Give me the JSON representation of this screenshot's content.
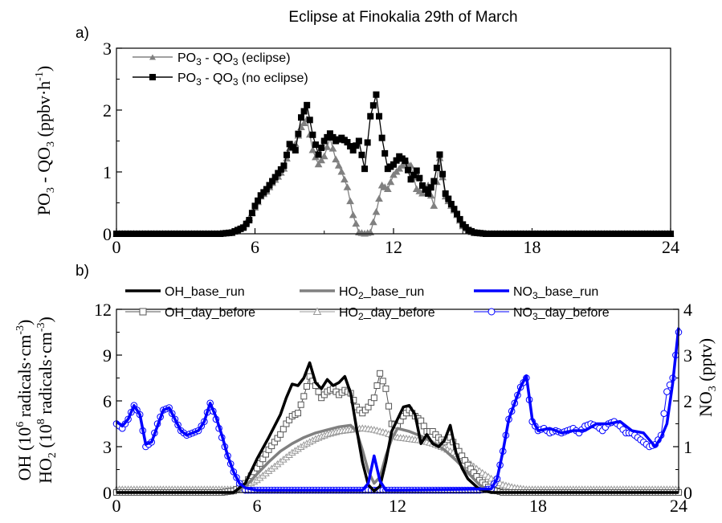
{
  "figure": {
    "title": "Eclipse at Finokalia 29th of March"
  },
  "chart_data": [
    {
      "panel_label": "a)",
      "type": "line",
      "ylabel_main": "PO",
      "ylabel_sub1": "3",
      "ylabel_mid": " - QO",
      "ylabel_sub2": "3",
      "ylabel_unit_open": " (ppbv",
      "ylabel_dot": "·",
      "ylabel_unit_h": "h",
      "ylabel_sup": "-1",
      "ylabel_close": ")",
      "xlim": [
        0,
        24
      ],
      "ylim": [
        0,
        3
      ],
      "xticks": [
        "0",
        "6",
        "12",
        "18",
        "24"
      ],
      "yticks": [
        "0",
        "1",
        "2",
        "3"
      ],
      "legend_position": "top-left",
      "series": [
        {
          "name": "PO3 - QO3 (eclipse)",
          "legend": {
            "a": "PO",
            "s1": "3",
            "b": " - QO",
            "s2": "3",
            "c": " (eclipse)"
          },
          "color": "#808080",
          "marker": "triangle",
          "x": [
            4.5,
            5.0,
            5.5,
            5.75,
            6.0,
            6.25,
            6.5,
            6.75,
            7.0,
            7.25,
            7.5,
            7.75,
            8.0,
            8.25,
            8.5,
            8.75,
            9.0,
            9.25,
            9.5,
            9.75,
            10.0,
            10.25,
            10.5,
            10.75,
            11.0,
            11.25,
            11.5,
            11.75,
            12.0,
            12.25,
            12.5,
            12.75,
            13.0,
            13.25,
            13.5,
            13.75,
            14.0,
            14.25,
            14.5,
            14.75,
            15.0,
            15.25,
            15.5,
            16.0,
            17.0,
            24.0
          ],
          "y": [
            0,
            0.01,
            0.12,
            0.25,
            0.42,
            0.6,
            0.68,
            0.82,
            0.92,
            1.05,
            1.38,
            1.45,
            1.72,
            1.85,
            1.35,
            1.12,
            1.25,
            1.55,
            1.2,
            1.0,
            0.75,
            0.3,
            0.02,
            0,
            0.02,
            0.35,
            0.78,
            0.72,
            0.95,
            1.05,
            1.15,
            1.1,
            0.72,
            0.65,
            0.78,
            0.45,
            1.22,
            0.6,
            0.45,
            0.3,
            0.12,
            0.04,
            0.01,
            0,
            0,
            0
          ]
        },
        {
          "name": "PO3 - QO3 (no eclipse)",
          "legend": {
            "a": "PO",
            "s1": "3",
            "b": " - QO",
            "s2": "3",
            "c": " (no eclipse)"
          },
          "color": "#000000",
          "marker": "square",
          "x": [
            4.5,
            5.0,
            5.5,
            5.75,
            6.0,
            6.25,
            6.5,
            6.75,
            7.0,
            7.25,
            7.5,
            7.75,
            8.0,
            8.25,
            8.5,
            8.75,
            9.0,
            9.25,
            9.5,
            9.75,
            10.0,
            10.25,
            10.5,
            10.75,
            11.0,
            11.25,
            11.5,
            11.75,
            12.0,
            12.25,
            12.5,
            12.75,
            13.0,
            13.25,
            13.5,
            13.75,
            14.0,
            14.25,
            14.5,
            14.75,
            15.0,
            15.25,
            15.5,
            16.0,
            17.0,
            24.0
          ],
          "y": [
            0,
            0.02,
            0.1,
            0.22,
            0.45,
            0.62,
            0.72,
            0.85,
            0.98,
            1.1,
            1.45,
            1.35,
            1.88,
            2.08,
            1.6,
            1.28,
            1.5,
            1.62,
            1.5,
            1.55,
            1.48,
            1.35,
            1.5,
            1.05,
            1.9,
            2.25,
            1.55,
            1.05,
            1.12,
            1.25,
            1.18,
            0.88,
            1.02,
            0.78,
            0.65,
            0.85,
            1.28,
            0.65,
            0.48,
            0.32,
            0.15,
            0.06,
            0.02,
            0,
            0,
            0
          ]
        }
      ]
    },
    {
      "panel_label": "b)",
      "type": "line",
      "ylabel_left1_a": "OH  (10",
      "ylabel_left1_sup": "6",
      "ylabel_left1_b": " radicals",
      "ylabel_left1_dot": "·",
      "ylabel_left1_c": "cm",
      "ylabel_left1_sup2": "-3",
      "ylabel_left1_d": ")",
      "ylabel_left2_a": "HO",
      "ylabel_left2_sub": "2",
      "ylabel_left2_b": " (10",
      "ylabel_left2_sup": "8",
      "ylabel_left2_c": " radicals",
      "ylabel_left2_dot": "·",
      "ylabel_left2_d": "cm",
      "ylabel_left2_sup2": "-3",
      "ylabel_left2_e": ")",
      "ylabel_right_a": "NO",
      "ylabel_right_sub": "3",
      "ylabel_right_b": " (pptv)",
      "xlim": [
        0,
        24
      ],
      "ylim_left": [
        0,
        12
      ],
      "ylim_right": [
        0,
        4
      ],
      "xticks": [
        "0",
        "6",
        "12",
        "18",
        "24"
      ],
      "yticks_left": [
        "0",
        "3",
        "6",
        "9",
        "12"
      ],
      "yticks_right": [
        "0",
        "1",
        "2",
        "3",
        "4"
      ],
      "legend_position": "top",
      "series": [
        {
          "name": "OH_base_run",
          "legend": {
            "a": "OH_base_run"
          },
          "axis": "left",
          "color": "#000000",
          "marker": "none",
          "width": 3.5,
          "x": [
            0,
            5.0,
            5.5,
            6.0,
            6.5,
            7.0,
            7.25,
            7.5,
            7.75,
            8.0,
            8.25,
            8.5,
            8.75,
            9.0,
            9.25,
            9.5,
            9.75,
            10.0,
            10.25,
            10.5,
            10.75,
            11.0,
            11.25,
            11.5,
            11.75,
            12.0,
            12.25,
            12.5,
            12.75,
            13.0,
            13.25,
            13.5,
            13.75,
            14.0,
            14.25,
            14.5,
            14.75,
            15.0,
            15.5,
            16.0,
            24
          ],
          "y": [
            0,
            0,
            0.6,
            2.2,
            3.6,
            5.1,
            6.2,
            7.1,
            7.0,
            7.5,
            8.5,
            7.2,
            6.8,
            7.4,
            7.0,
            7.2,
            7.6,
            6.5,
            4.2,
            2.0,
            0.5,
            0.1,
            0.4,
            2.0,
            4.0,
            4.8,
            5.6,
            5.7,
            5.1,
            3.2,
            3.8,
            3.2,
            3.0,
            3.4,
            4.4,
            2.6,
            1.6,
            0.9,
            0.2,
            0,
            0
          ]
        },
        {
          "name": "HO2_base_run",
          "legend": {
            "a": "HO",
            "s1": "2",
            "b": "_base_run"
          },
          "axis": "left",
          "color": "#808080",
          "marker": "none",
          "width": 3.5,
          "x": [
            0,
            5.0,
            5.5,
            6.0,
            6.5,
            7.0,
            7.5,
            8.0,
            8.5,
            9.0,
            9.5,
            10.0,
            10.25,
            10.5,
            10.75,
            11.0,
            11.25,
            11.5,
            11.75,
            12.0,
            12.5,
            13.0,
            13.5,
            14.0,
            14.5,
            15.0,
            15.5,
            16.0,
            24
          ],
          "y": [
            0,
            0,
            0.4,
            1.2,
            2.0,
            2.7,
            3.2,
            3.6,
            3.9,
            4.1,
            4.3,
            4.4,
            4.0,
            2.8,
            1.4,
            0.6,
            1.0,
            2.4,
            3.5,
            4.2,
            4.0,
            3.7,
            3.3,
            2.8,
            2.1,
            1.3,
            0.5,
            0,
            0
          ]
        },
        {
          "name": "NO3_base_run",
          "legend": {
            "a": "NO",
            "s1": "3",
            "b": "_base_run"
          },
          "axis": "right",
          "color": "#0000ff",
          "marker": "none",
          "width": 3.5,
          "x": [
            0,
            0.25,
            0.5,
            0.75,
            1.0,
            1.25,
            1.5,
            1.75,
            2.0,
            2.25,
            2.5,
            2.75,
            3.0,
            3.25,
            3.5,
            3.75,
            4.0,
            4.25,
            4.5,
            4.75,
            5.0,
            5.25,
            5.5,
            6.0,
            10.5,
            10.75,
            11.0,
            11.25,
            11.5,
            12.0,
            16.0,
            16.25,
            16.5,
            16.75,
            17.0,
            17.25,
            17.5,
            17.75,
            18.0,
            18.5,
            19.0,
            19.5,
            20.0,
            20.5,
            21.0,
            21.5,
            22.0,
            22.5,
            23.0,
            23.25,
            23.5,
            23.75,
            24.0
          ],
          "y": [
            1.55,
            1.45,
            1.6,
            1.9,
            1.7,
            1.05,
            1.1,
            1.45,
            1.8,
            1.85,
            1.6,
            1.35,
            1.25,
            1.3,
            1.35,
            1.55,
            1.95,
            1.65,
            1.25,
            0.8,
            0.45,
            0.2,
            0.1,
            0.05,
            0.05,
            0.2,
            0.8,
            0.25,
            0.05,
            0.05,
            0.08,
            0.3,
            0.9,
            1.6,
            1.95,
            2.3,
            2.55,
            1.6,
            1.35,
            1.4,
            1.3,
            1.35,
            1.35,
            1.5,
            1.5,
            1.55,
            1.35,
            1.3,
            1.0,
            1.2,
            1.5,
            2.4,
            3.6
          ]
        },
        {
          "name": "OH_day_before",
          "legend": {
            "a": "OH_day_before"
          },
          "axis": "left",
          "color": "#555555",
          "marker": "square",
          "width": 1,
          "x": [
            0,
            0.5,
            1,
            1.5,
            2,
            2.5,
            3,
            3.5,
            4,
            4.5,
            5.0,
            5.25,
            5.5,
            5.75,
            6.0,
            6.25,
            6.5,
            6.75,
            7.0,
            7.25,
            7.5,
            7.75,
            8.0,
            8.25,
            8.5,
            8.75,
            9.0,
            9.25,
            9.5,
            9.75,
            10.0,
            10.25,
            10.5,
            10.75,
            11.0,
            11.25,
            11.5,
            11.75,
            12.0,
            12.25,
            12.5,
            12.75,
            13.0,
            13.25,
            13.5,
            13.75,
            14.0,
            14.25,
            14.5,
            14.75,
            15.0,
            15.25,
            15.5,
            15.75,
            16.0,
            16.5,
            17,
            17.5,
            18,
            18.5,
            19,
            19.5,
            20,
            20.5,
            21,
            21.5,
            22,
            22.5,
            23,
            23.5,
            24
          ],
          "y": [
            0,
            0,
            0,
            0,
            0,
            0,
            0,
            0,
            0,
            0,
            0.1,
            0.3,
            0.6,
            1.1,
            1.6,
            2.2,
            2.8,
            3.3,
            3.8,
            4.5,
            5.0,
            5.2,
            6.3,
            7.6,
            7.0,
            6.2,
            6.6,
            6.8,
            6.4,
            6.7,
            6.5,
            5.6,
            5.2,
            5.6,
            6.2,
            7.8,
            6.8,
            4.5,
            4.4,
            5.0,
            5.4,
            5.0,
            4.7,
            4.0,
            4.0,
            3.6,
            3.3,
            3.6,
            3.0,
            2.4,
            1.8,
            1.3,
            0.8,
            0.5,
            0.2,
            0,
            0,
            0,
            0,
            0,
            0,
            0,
            0,
            0,
            0,
            0,
            0,
            0,
            0,
            0,
            0
          ]
        },
        {
          "name": "HO2_day_before",
          "legend": {
            "a": "HO",
            "s1": "2",
            "b": "_day_before"
          },
          "axis": "left",
          "color": "#999999",
          "marker": "triangle",
          "width": 1,
          "x": [
            0,
            0.5,
            1,
            1.5,
            2,
            2.5,
            3,
            3.5,
            4,
            4.5,
            5.0,
            5.5,
            6.0,
            6.5,
            7.0,
            7.5,
            8.0,
            8.5,
            9.0,
            9.5,
            10.0,
            10.5,
            11.0,
            11.5,
            12.0,
            12.5,
            13.0,
            13.5,
            14.0,
            14.5,
            15.0,
            15.5,
            16.0,
            16.5,
            17.0,
            17.5,
            18,
            18.5,
            19,
            19.5,
            20,
            20.5,
            21,
            21.5,
            22,
            22.5,
            23,
            23.5,
            24
          ],
          "y": [
            0.2,
            0.2,
            0.2,
            0.2,
            0.2,
            0.2,
            0.2,
            0.2,
            0.2,
            0.2,
            0.2,
            0.4,
            0.8,
            1.4,
            2.0,
            2.6,
            3.1,
            3.5,
            3.8,
            4.0,
            4.1,
            4.2,
            4.1,
            3.9,
            3.6,
            3.5,
            3.4,
            3.2,
            2.9,
            2.5,
            2.0,
            1.4,
            0.9,
            0.5,
            0.3,
            0.2,
            0.2,
            0.2,
            0.2,
            0.2,
            0.2,
            0.2,
            0.2,
            0.2,
            0.2,
            0.2,
            0.2,
            0.2,
            0.2
          ]
        },
        {
          "name": "NO3_day_before",
          "legend": {
            "a": "NO",
            "s1": "3",
            "b": "_day_before"
          },
          "axis": "right",
          "color": "#0000ff",
          "marker": "circle",
          "width": 1,
          "x": [
            0,
            0.25,
            0.5,
            0.75,
            1.0,
            1.25,
            1.5,
            1.75,
            2.0,
            2.25,
            2.5,
            2.75,
            3.0,
            3.25,
            3.5,
            3.75,
            4.0,
            4.25,
            4.5,
            4.75,
            5.0,
            5.25,
            5.5,
            6.0,
            6.5,
            7,
            7.5,
            8,
            8.5,
            9,
            9.5,
            10,
            10.5,
            11,
            11.5,
            12,
            12.5,
            13,
            13.5,
            14,
            14.5,
            15,
            15.5,
            16.0,
            16.25,
            16.5,
            16.75,
            17.0,
            17.25,
            17.5,
            17.75,
            18.0,
            18.25,
            18.5,
            18.75,
            19.0,
            19.25,
            19.5,
            19.75,
            20.0,
            20.25,
            20.5,
            20.75,
            21.0,
            21.25,
            21.5,
            21.75,
            22.0,
            22.25,
            22.5,
            22.75,
            23.0,
            23.25,
            23.5,
            23.75,
            24.0
          ],
          "y": [
            1.5,
            1.4,
            1.6,
            1.9,
            1.7,
            1.0,
            1.1,
            1.5,
            1.8,
            1.85,
            1.6,
            1.35,
            1.25,
            1.3,
            1.35,
            1.55,
            1.95,
            1.6,
            1.2,
            0.8,
            0.45,
            0.2,
            0.05,
            0.05,
            0.05,
            0.05,
            0.05,
            0.05,
            0.05,
            0.05,
            0.05,
            0.05,
            0.05,
            0.05,
            0.05,
            0.05,
            0.05,
            0.05,
            0.05,
            0.05,
            0.05,
            0.05,
            0.05,
            0.08,
            0.3,
            0.9,
            1.6,
            1.95,
            2.3,
            2.5,
            1.55,
            1.35,
            1.4,
            1.3,
            1.35,
            1.3,
            1.35,
            1.4,
            1.3,
            1.45,
            1.5,
            1.45,
            1.35,
            1.5,
            1.55,
            1.45,
            1.3,
            1.3,
            1.2,
            1.1,
            1.0,
            1.05,
            1.25,
            2.2,
            2.5,
            3.5
          ]
        }
      ]
    }
  ]
}
